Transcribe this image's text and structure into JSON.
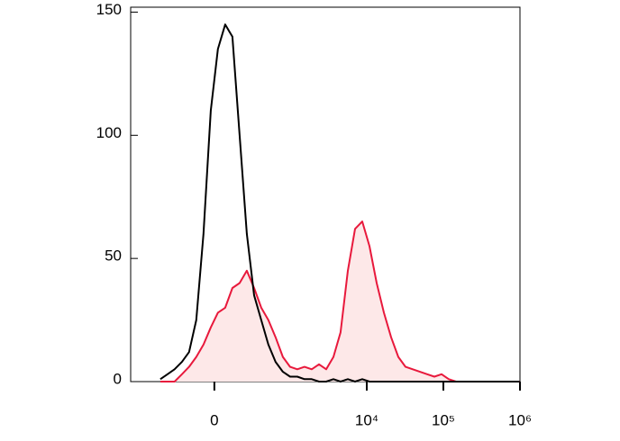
{
  "chart_data": {
    "type": "histogram-overlay",
    "x": [
      -500,
      -394,
      -308,
      -233,
      -171,
      -117,
      -68,
      -22,
      22,
      68,
      117,
      171,
      233,
      308,
      394,
      500,
      629,
      791,
      988,
      1232,
      1533,
      1908,
      2374,
      2950,
      3665,
      4551,
      5658,
      7032,
      8733,
      10845,
      13469,
      16728,
      20787,
      25810,
      32062,
      39832,
      49467,
      61439,
      76301,
      94792,
      117732,
      146227,
      213610,
      366950,
      630990,
      980000
    ],
    "series": [
      {
        "color": "#000000",
        "fill": "none",
        "values": [
          1,
          3,
          5,
          8,
          12,
          25,
          60,
          110,
          135,
          145,
          140,
          100,
          60,
          35,
          25,
          15,
          8,
          4,
          2,
          2,
          1,
          1,
          0,
          0,
          1,
          0,
          1,
          0,
          1,
          0,
          0,
          0,
          0,
          0,
          0,
          0,
          0,
          0,
          0,
          0,
          0,
          0,
          0,
          0,
          0,
          0
        ]
      },
      {
        "color": "#e8193c",
        "fill": "#fde8e8",
        "values": [
          0,
          0,
          0,
          3,
          6,
          10,
          15,
          22,
          28,
          30,
          38,
          40,
          45,
          38,
          30,
          25,
          18,
          10,
          6,
          5,
          6,
          5,
          7,
          5,
          10,
          20,
          45,
          62,
          65,
          55,
          40,
          28,
          18,
          10,
          6,
          5,
          4,
          3,
          2,
          3,
          1,
          0,
          0,
          0,
          0,
          0
        ]
      }
    ],
    "xlim": [
      -1260,
      1000000
    ],
    "xticks": [
      {
        "value": 0,
        "label": "0"
      },
      {
        "value": 10000,
        "label": "10⁴"
      },
      {
        "value": 100000,
        "label": "10⁵"
      },
      {
        "value": 1000000,
        "label": "10⁶"
      }
    ],
    "ylim": [
      0,
      152
    ],
    "yticks": [
      0,
      50,
      100,
      150
    ]
  }
}
